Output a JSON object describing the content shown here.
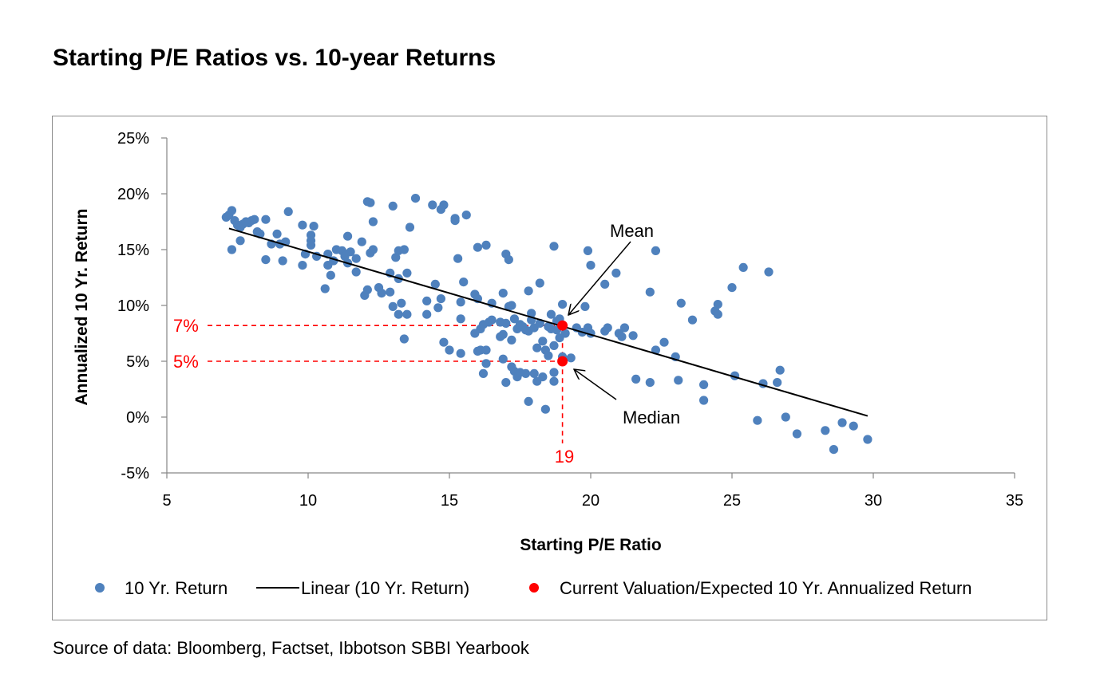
{
  "title": "Starting P/E Ratios vs. 10-year Returns",
  "source": "Source of data: Bloomberg, Factset, Ibbotson SBBI Yearbook",
  "colors": {
    "points": "#4f81bd",
    "trend": "#000000",
    "current": "#ff0000"
  },
  "annotations": {
    "mean": "Mean",
    "median": "Median",
    "mean_value": "7%",
    "median_value": "5%",
    "current_pe": "19"
  },
  "chart_data": {
    "type": "scatter",
    "xlabel": "Starting P/E Ratio",
    "ylabel": "Annualized 10 Yr. Return",
    "xlim": [
      5,
      35
    ],
    "ylim": [
      -5,
      25
    ],
    "x_ticks": [
      "5",
      "10",
      "15",
      "20",
      "25",
      "30",
      "35"
    ],
    "y_ticks": [
      "-5%",
      "0%",
      "5%",
      "10%",
      "15%",
      "20%",
      "25%"
    ],
    "legend_position": "bottom",
    "legend": [
      "10 Yr. Return",
      "Linear (10 Yr. Return)",
      "Current Valuation/Expected 10 Yr. Annualized Return"
    ],
    "series": [
      {
        "name": "10 Yr. Return",
        "type": "scatter",
        "points": [
          [
            7.1,
            17.9
          ],
          [
            7.2,
            18.1
          ],
          [
            7.3,
            18.5
          ],
          [
            7.4,
            17.6
          ],
          [
            7.5,
            17.2
          ],
          [
            7.6,
            17.0
          ],
          [
            7.6,
            15.8
          ],
          [
            7.7,
            17.3
          ],
          [
            7.8,
            17.5
          ],
          [
            7.9,
            17.4
          ],
          [
            8.0,
            17.6
          ],
          [
            8.1,
            17.7
          ],
          [
            7.3,
            15.0
          ],
          [
            8.2,
            16.6
          ],
          [
            8.3,
            16.4
          ],
          [
            8.5,
            17.7
          ],
          [
            8.5,
            14.1
          ],
          [
            8.7,
            15.5
          ],
          [
            8.9,
            16.4
          ],
          [
            9.0,
            15.5
          ],
          [
            9.2,
            15.7
          ],
          [
            9.1,
            14.0
          ],
          [
            9.3,
            18.4
          ],
          [
            9.8,
            13.6
          ],
          [
            9.8,
            17.2
          ],
          [
            9.9,
            14.6
          ],
          [
            10.1,
            16.3
          ],
          [
            10.1,
            15.4
          ],
          [
            10.1,
            15.8
          ],
          [
            10.2,
            17.1
          ],
          [
            10.3,
            14.4
          ],
          [
            10.6,
            11.5
          ],
          [
            10.7,
            13.6
          ],
          [
            10.7,
            14.6
          ],
          [
            10.8,
            12.7
          ],
          [
            10.9,
            14.0
          ],
          [
            11.0,
            15.0
          ],
          [
            11.2,
            14.9
          ],
          [
            11.3,
            14.4
          ],
          [
            11.4,
            13.8
          ],
          [
            11.4,
            16.2
          ],
          [
            11.5,
            14.8
          ],
          [
            11.7,
            14.2
          ],
          [
            11.7,
            13.0
          ],
          [
            11.9,
            15.7
          ],
          [
            12.0,
            10.9
          ],
          [
            12.1,
            11.4
          ],
          [
            12.1,
            19.3
          ],
          [
            12.2,
            19.2
          ],
          [
            12.2,
            14.7
          ],
          [
            12.3,
            17.5
          ],
          [
            12.3,
            15.0
          ],
          [
            12.5,
            11.6
          ],
          [
            12.6,
            11.1
          ],
          [
            12.9,
            12.9
          ],
          [
            12.9,
            11.2
          ],
          [
            13.0,
            9.9
          ],
          [
            13.0,
            18.9
          ],
          [
            13.1,
            14.3
          ],
          [
            13.2,
            14.9
          ],
          [
            13.2,
            12.4
          ],
          [
            13.3,
            10.2
          ],
          [
            13.2,
            9.2
          ],
          [
            13.4,
            15.0
          ],
          [
            13.4,
            7.0
          ],
          [
            13.5,
            12.9
          ],
          [
            13.5,
            9.2
          ],
          [
            13.6,
            17.0
          ],
          [
            13.8,
            19.6
          ],
          [
            14.2,
            10.4
          ],
          [
            14.2,
            9.2
          ],
          [
            14.4,
            19.0
          ],
          [
            14.5,
            11.9
          ],
          [
            14.6,
            9.8
          ],
          [
            14.7,
            10.6
          ],
          [
            14.8,
            19.0
          ],
          [
            14.7,
            18.6
          ],
          [
            14.8,
            6.7
          ],
          [
            15.0,
            6.0
          ],
          [
            15.2,
            17.8
          ],
          [
            15.2,
            17.6
          ],
          [
            15.3,
            14.2
          ],
          [
            15.4,
            10.3
          ],
          [
            15.4,
            8.8
          ],
          [
            15.4,
            5.7
          ],
          [
            15.5,
            12.1
          ],
          [
            15.6,
            18.1
          ],
          [
            15.9,
            11.0
          ],
          [
            15.9,
            7.5
          ],
          [
            16.0,
            15.2
          ],
          [
            16.0,
            10.6
          ],
          [
            16.0,
            5.9
          ],
          [
            16.1,
            7.9
          ],
          [
            16.1,
            6.0
          ],
          [
            16.2,
            3.9
          ],
          [
            16.2,
            8.3
          ],
          [
            16.3,
            15.4
          ],
          [
            16.3,
            4.8
          ],
          [
            16.3,
            6.0
          ],
          [
            16.5,
            10.2
          ],
          [
            16.4,
            8.5
          ],
          [
            16.5,
            8.7
          ],
          [
            16.8,
            8.5
          ],
          [
            16.8,
            7.2
          ],
          [
            16.9,
            7.4
          ],
          [
            16.9,
            5.2
          ],
          [
            16.9,
            11.1
          ],
          [
            17.0,
            14.6
          ],
          [
            17.1,
            14.1
          ],
          [
            17.0,
            8.4
          ],
          [
            17.1,
            9.9
          ],
          [
            17.0,
            3.1
          ],
          [
            17.2,
            10.0
          ],
          [
            17.2,
            6.9
          ],
          [
            17.2,
            4.5
          ],
          [
            17.3,
            8.8
          ],
          [
            17.3,
            4.1
          ],
          [
            17.4,
            7.9
          ],
          [
            17.4,
            3.6
          ],
          [
            17.5,
            8.3
          ],
          [
            17.5,
            4.0
          ],
          [
            17.6,
            8.1
          ],
          [
            17.7,
            7.8
          ],
          [
            17.7,
            3.9
          ],
          [
            17.8,
            11.3
          ],
          [
            17.8,
            1.4
          ],
          [
            17.8,
            7.7
          ],
          [
            17.9,
            9.3
          ],
          [
            17.9,
            8.7
          ],
          [
            18.0,
            8.0
          ],
          [
            18.0,
            3.9
          ],
          [
            18.1,
            6.2
          ],
          [
            18.1,
            3.2
          ],
          [
            18.2,
            12.0
          ],
          [
            18.2,
            8.4
          ],
          [
            18.3,
            6.8
          ],
          [
            18.3,
            3.6
          ],
          [
            18.4,
            0.7
          ],
          [
            18.4,
            6.0
          ],
          [
            18.5,
            8.1
          ],
          [
            18.5,
            5.5
          ],
          [
            18.6,
            9.2
          ],
          [
            18.6,
            7.9
          ],
          [
            18.7,
            15.3
          ],
          [
            18.7,
            6.4
          ],
          [
            18.7,
            4.0
          ],
          [
            18.7,
            3.2
          ],
          [
            18.8,
            7.8
          ],
          [
            18.8,
            8.6
          ],
          [
            18.9,
            8.8
          ],
          [
            18.9,
            7.1
          ],
          [
            19.0,
            10.1
          ],
          [
            19.0,
            5.4
          ],
          [
            19.1,
            7.5
          ],
          [
            19.3,
            5.3
          ],
          [
            19.5,
            8.0
          ],
          [
            19.7,
            7.6
          ],
          [
            19.8,
            9.9
          ],
          [
            19.9,
            14.9
          ],
          [
            19.9,
            8.0
          ],
          [
            20.0,
            13.6
          ],
          [
            20.0,
            7.5
          ],
          [
            20.5,
            11.9
          ],
          [
            20.5,
            7.7
          ],
          [
            20.6,
            8.0
          ],
          [
            20.9,
            12.9
          ],
          [
            21.0,
            7.5
          ],
          [
            21.1,
            7.2
          ],
          [
            21.2,
            8.0
          ],
          [
            21.5,
            7.3
          ],
          [
            21.6,
            3.4
          ],
          [
            22.1,
            11.2
          ],
          [
            22.1,
            3.1
          ],
          [
            22.3,
            14.9
          ],
          [
            22.3,
            6.0
          ],
          [
            22.6,
            6.7
          ],
          [
            23.0,
            5.4
          ],
          [
            23.1,
            3.3
          ],
          [
            23.2,
            10.2
          ],
          [
            23.6,
            8.7
          ],
          [
            24.0,
            2.9
          ],
          [
            24.0,
            1.5
          ],
          [
            24.4,
            9.5
          ],
          [
            24.5,
            10.1
          ],
          [
            24.5,
            9.2
          ],
          [
            25.0,
            11.6
          ],
          [
            25.1,
            3.7
          ],
          [
            25.4,
            13.4
          ],
          [
            25.9,
            -0.3
          ],
          [
            26.1,
            3.0
          ],
          [
            26.3,
            13.0
          ],
          [
            26.6,
            3.1
          ],
          [
            26.7,
            4.2
          ],
          [
            26.9,
            0.0
          ],
          [
            27.3,
            -1.5
          ],
          [
            28.3,
            -1.2
          ],
          [
            28.6,
            -2.9
          ],
          [
            28.9,
            -0.5
          ],
          [
            29.3,
            -0.8
          ],
          [
            29.8,
            -2.0
          ]
        ]
      },
      {
        "name": "Linear (10 Yr. Return)",
        "type": "line",
        "points": [
          [
            7.2,
            16.9
          ],
          [
            29.8,
            0.1
          ]
        ]
      },
      {
        "name": "Current Valuation/Expected 10 Yr. Annualized Return",
        "type": "scatter",
        "points": [
          [
            19,
            8.2
          ],
          [
            19,
            5.0
          ]
        ]
      }
    ]
  }
}
